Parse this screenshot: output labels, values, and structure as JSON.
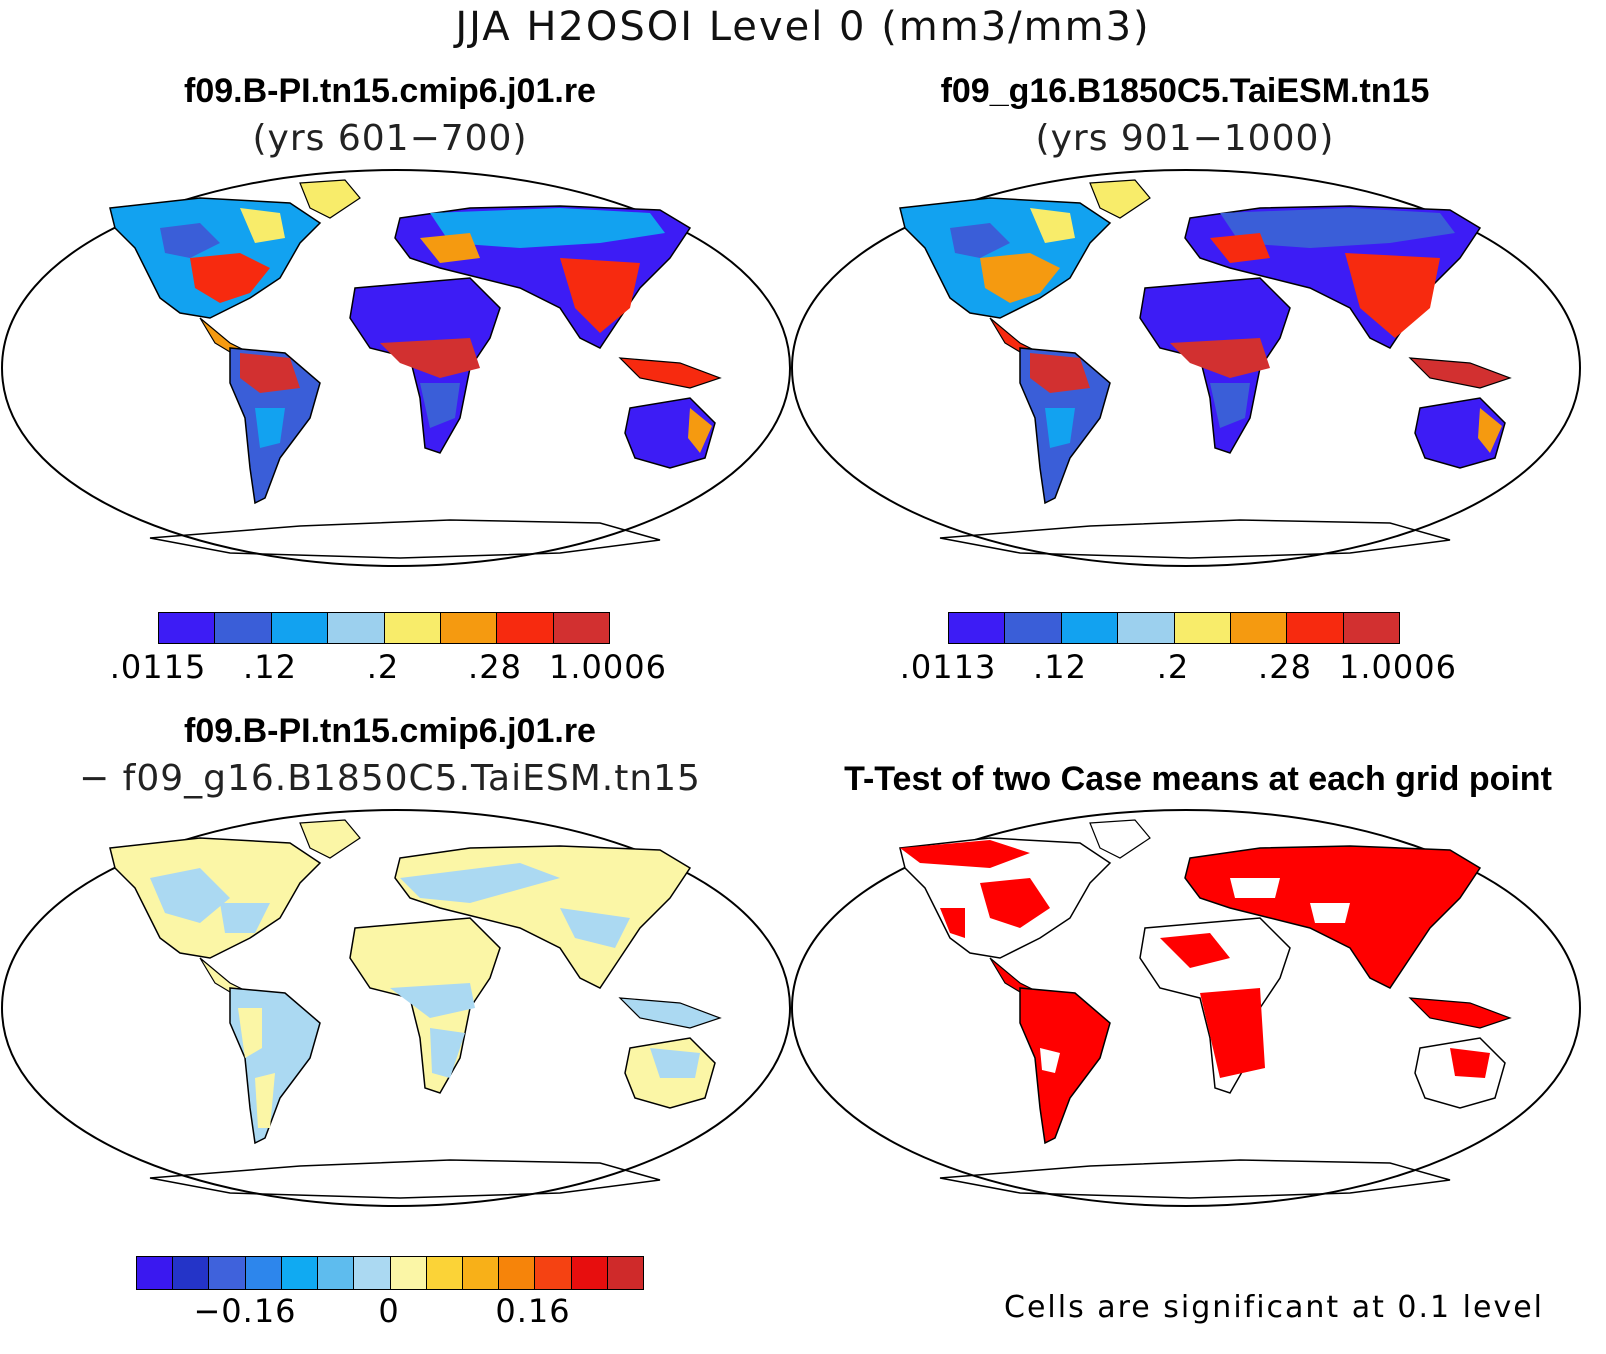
{
  "title": "JJA H2OSOI Level 0 (mm3/mm3)",
  "panels": {
    "case1": {
      "name": "f09.B-PI.tn15.cmip6.j01.re",
      "years": "(yrs 601−700)",
      "colorbar_labels": [
        ".0115",
        ".12",
        ".2",
        ".28",
        "1.0006"
      ]
    },
    "case2": {
      "name": "f09_g16.B1850C5.TaiESM.tn15",
      "years": "(yrs 901−1000)",
      "colorbar_labels": [
        ".0113",
        ".12",
        ".2",
        ".28",
        "1.0006"
      ]
    },
    "diff": {
      "name": "f09.B-PI.tn15.cmip6.j01.re",
      "minus": "− f09_g16.B1850C5.TaiESM.tn15",
      "colorbar_labels": [
        "−0.16",
        "0",
        "0.16"
      ]
    },
    "ttest": {
      "title": "T-Test of two Case means at each grid point",
      "note": "Cells are significant at 0.1 level"
    }
  },
  "colors": {
    "abs_scale": [
      "#3d1cf5",
      "#3a5ed8",
      "#12a2f0",
      "#9cd0ee",
      "#f8ec6a",
      "#f59a10",
      "#f72a0f",
      "#d23030"
    ],
    "diff_scale": [
      "#3a18f0",
      "#2434c8",
      "#3f62dc",
      "#2d86ec",
      "#10aaf2",
      "#5ebcee",
      "#abd9f2",
      "#fbf6a6",
      "#fbd337",
      "#f8b018",
      "#f6840a",
      "#f54212",
      "#e70e0e",
      "#cf2a2a"
    ],
    "significant": "#ff0000"
  }
}
